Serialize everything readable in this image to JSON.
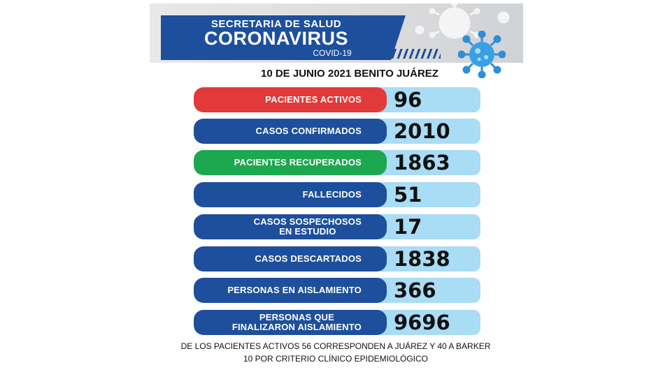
{
  "header": {
    "line1": "SECRETARIA DE SALUD",
    "line2": "CORONAVIRUS",
    "line3": "COVID-19"
  },
  "date_line": "10 DE JUNIO 2021 BENITO JUÁREZ",
  "rows": [
    {
      "label": "PACIENTES ACTIVOS",
      "value": "96",
      "color": "#e23a3a"
    },
    {
      "label": "CASOS CONFIRMADOS",
      "value": "2010",
      "color": "#1d4f9c"
    },
    {
      "label": "PACIENTES RECUPERADOS",
      "value": "1863",
      "color": "#1ca84f"
    },
    {
      "label": "FALLECIDOS",
      "value": "51",
      "color": "#1d4f9c"
    },
    {
      "label_line1": "CASOS SOSPECHOSOS",
      "label_line2": "EN ESTUDIO",
      "value": "17",
      "color": "#1d4f9c"
    },
    {
      "label": "CASOS DESCARTADOS",
      "value": "1838",
      "color": "#1d4f9c"
    },
    {
      "label": "PERSONAS EN AISLAMIENTO",
      "value": "366",
      "color": "#1d4f9c"
    },
    {
      "label_line1": "PERSONAS QUE",
      "label_line2": "FINALIZARON AISLAMIENTO",
      "value": "9696",
      "color": "#1d4f9c"
    }
  ],
  "footer": {
    "line1": "DE LOS PACIENTES ACTIVOS  56 CORRESPONDEN A JUÁREZ Y 40 A BARKER",
    "line2": "10 POR CRITERIO CLÍNICO EPIDEMIOLÓGICO"
  },
  "icons": {
    "virus": "coronavirus-icon"
  }
}
